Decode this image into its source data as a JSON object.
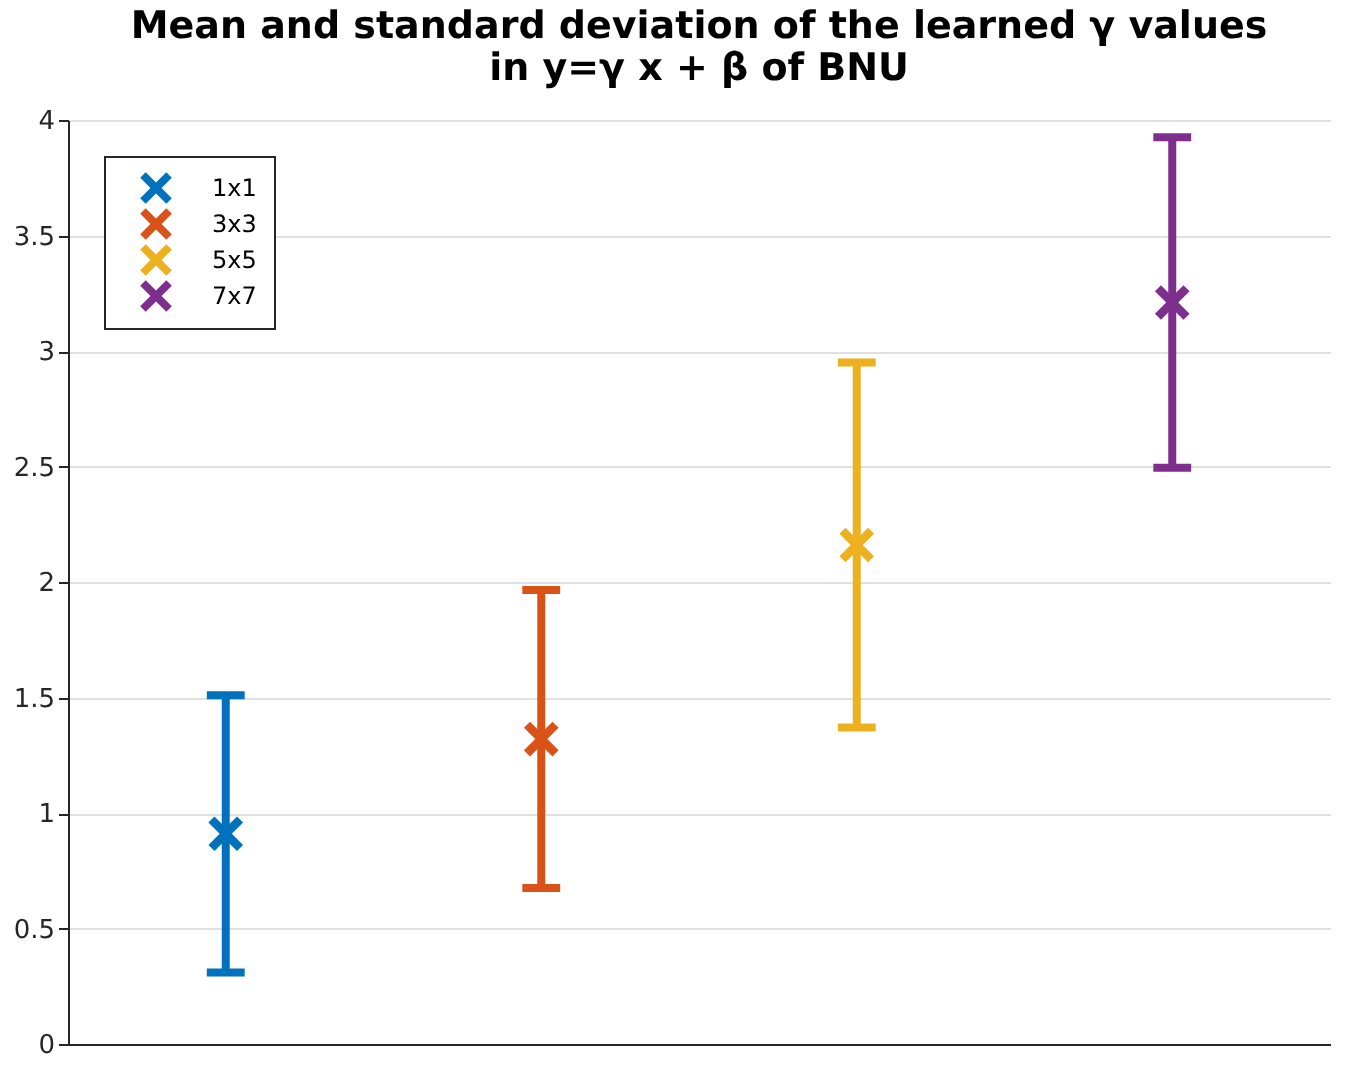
{
  "chart_data": {
    "type": "scatter",
    "title": "Mean and standard deviation of the learned γ values\nin y=γ x + β of BNU",
    "categories": [
      null,
      null,
      null,
      null
    ],
    "series": [
      {
        "name": "1x1",
        "color": "#0072bd",
        "values": [
          0.91,
          null,
          null,
          null
        ],
        "errors": [
          0.6,
          null,
          null,
          null
        ]
      },
      {
        "name": "3x3",
        "color": "#d95319",
        "values": [
          null,
          1.32,
          null,
          null
        ],
        "errors": [
          null,
          0.645,
          null,
          null
        ]
      },
      {
        "name": "5x5",
        "color": "#edb120",
        "values": [
          null,
          null,
          2.16,
          null
        ],
        "errors": [
          null,
          null,
          0.79,
          null
        ]
      },
      {
        "name": "7x7",
        "color": "#7e2f8e",
        "values": [
          null,
          null,
          null,
          3.21
        ],
        "errors": [
          null,
          null,
          null,
          0.715
        ]
      }
    ],
    "ylim": [
      0,
      4
    ],
    "yticks": [
      0,
      0.5,
      1,
      1.5,
      2,
      2.5,
      3,
      3.5,
      4
    ],
    "grid": "y",
    "legend": "top left",
    "marker": "cross",
    "tick_labels": "y"
  }
}
